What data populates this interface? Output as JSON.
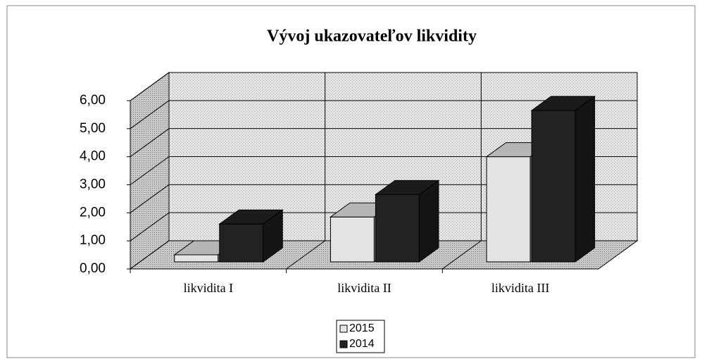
{
  "chart_data": {
    "type": "bar3d",
    "title": "Vývoj ukazovateľov likvidity",
    "categories": [
      "likvidita I",
      "likvidita II",
      "likvidita III"
    ],
    "series": [
      {
        "name": "2015",
        "color": "#e4e4e4",
        "values": [
          0.25,
          1.6,
          3.75
        ]
      },
      {
        "name": "2014",
        "color": "#222222",
        "values": [
          1.35,
          2.4,
          5.4
        ]
      }
    ],
    "ylim": [
      0,
      6
    ],
    "yticks": [
      {
        "value": 0,
        "label": "0,00"
      },
      {
        "value": 1,
        "label": "1,00"
      },
      {
        "value": 2,
        "label": "2,00"
      },
      {
        "value": 3,
        "label": "3,00"
      },
      {
        "value": 4,
        "label": "4,00"
      },
      {
        "value": 5,
        "label": "5,00"
      },
      {
        "value": 6,
        "label": "6,00"
      }
    ],
    "grid": true
  }
}
